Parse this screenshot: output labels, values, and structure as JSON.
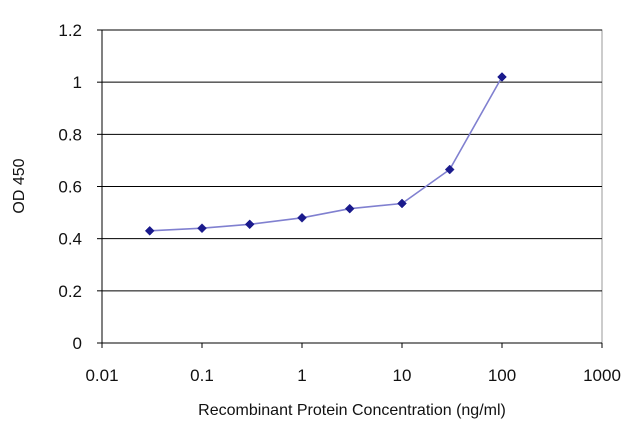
{
  "chart_data": {
    "type": "line",
    "xscale": "log",
    "xlim": [
      0.01,
      1000
    ],
    "ylim": [
      0,
      1.2
    ],
    "xticks": [
      0.01,
      0.1,
      1,
      10,
      100,
      1000
    ],
    "xtick_labels": [
      "0.01",
      "0.1",
      "1",
      "10",
      "100",
      "1000"
    ],
    "yticks": [
      0,
      0.2,
      0.4,
      0.6,
      0.8,
      1,
      1.2
    ],
    "ytick_labels": [
      "0",
      "0.2",
      "0.4",
      "0.6",
      "0.8",
      "1",
      "1.2"
    ],
    "xlabel": "Recombinant Protein Concentration (ng/ml)",
    "ylabel": "OD 450",
    "grid": "horizontal",
    "legend": "none",
    "series": [
      {
        "x": [
          0.03,
          0.1,
          0.3,
          1,
          3,
          10,
          30,
          100
        ],
        "y": [
          0.43,
          0.44,
          0.455,
          0.48,
          0.515,
          0.535,
          0.665,
          1.02
        ]
      }
    ],
    "colors": {
      "line": "#8080d0",
      "marker": "#1a1a8c",
      "grid": "#000000",
      "frame": "#888888"
    }
  }
}
